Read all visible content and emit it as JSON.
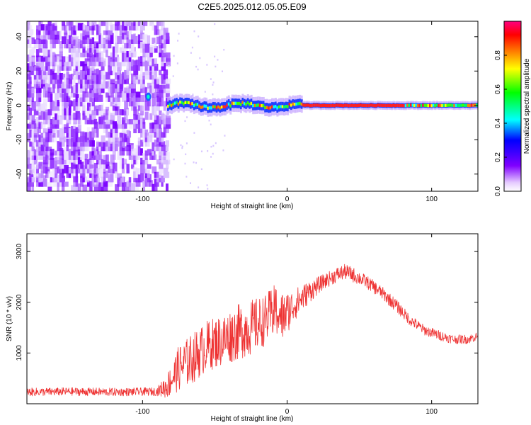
{
  "title": "C2E5.2025.012.05.05.E09",
  "chart_data": [
    {
      "type": "heatmap",
      "xlabel": "Height of straight line (km)",
      "ylabel": "Frequency (Hz)",
      "xlim": [
        -180,
        132
      ],
      "ylim": [
        -50,
        49
      ],
      "xticks": [
        -100,
        0,
        100
      ],
      "yticks": [
        -40,
        -20,
        0,
        20,
        40
      ],
      "noise_region_x": [
        -180,
        -83
      ],
      "signal_start_x": -83,
      "trace_frequency_hz": 0,
      "colorbar": {
        "label": "Normalized spectral amplitude",
        "range": [
          0,
          1
        ],
        "ticks": [
          "0.0",
          "0.2",
          "0.4",
          "0.6",
          "0.8"
        ]
      }
    },
    {
      "type": "line",
      "xlabel": "Height of straight line (km)",
      "ylabel": "SNR (10 * v/v)",
      "xlim": [
        -180,
        132
      ],
      "ylim": [
        0,
        3350
      ],
      "xticks": [
        -100,
        0,
        100
      ],
      "yticks": [
        1000,
        2000,
        3000
      ],
      "color": "#ee3333",
      "series": [
        {
          "name": "SNR",
          "x": [
            -180,
            -150,
            -120,
            -90,
            -83,
            -75,
            -65,
            -55,
            -45,
            -35,
            -25,
            -15,
            -8,
            -3,
            0,
            5,
            15,
            25,
            35,
            40,
            45,
            55,
            65,
            75,
            85,
            95,
            105,
            115,
            125,
            132
          ],
          "values": [
            230,
            240,
            230,
            240,
            350,
            700,
            900,
            1150,
            1250,
            1400,
            1500,
            1650,
            1850,
            1700,
            1800,
            1950,
            2200,
            2400,
            2550,
            2600,
            2550,
            2400,
            2200,
            1950,
            1650,
            1450,
            1350,
            1270,
            1270,
            1330
          ],
          "noise_amplitude": [
            80,
            80,
            80,
            80,
            250,
            450,
            500,
            500,
            520,
            550,
            550,
            500,
            520,
            480,
            420,
            320,
            220,
            150,
            150,
            150,
            150,
            130,
            130,
            130,
            110,
            100,
            100,
            90,
            90,
            90
          ]
        }
      ]
    }
  ]
}
